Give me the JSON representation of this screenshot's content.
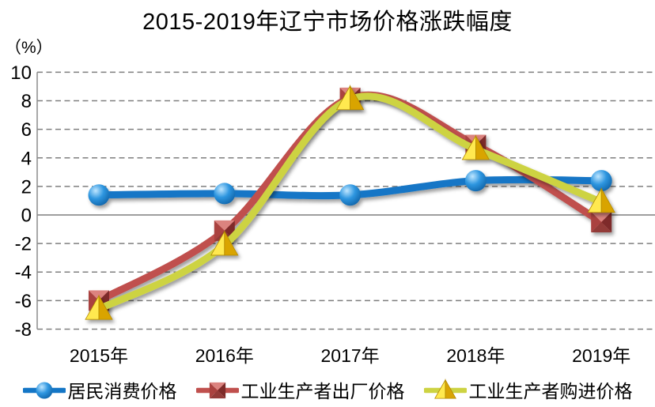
{
  "title": "2015-2019年辽宁市场价格涨跌幅度",
  "y_axis": {
    "unit_label": "（%）",
    "tick_labels": [
      "10",
      "8",
      "6",
      "4",
      "2",
      "0",
      "-2",
      "-4",
      "-6",
      "-8"
    ]
  },
  "chart_data": {
    "type": "line",
    "title": "2015-2019年辽宁市场价格涨跌幅度",
    "ylabel": "（%）",
    "categories": [
      "2015年",
      "2016年",
      "2017年",
      "2018年",
      "2019年"
    ],
    "series": [
      {
        "name": "居民消费价格",
        "marker": "circle",
        "color": "#1476C6",
        "values": [
          1.4,
          1.5,
          1.4,
          2.4,
          2.4
        ],
        "sphere_colors": [
          "#BFE6FF",
          "#2E96E0",
          "#0A5A9E"
        ]
      },
      {
        "name": "工业生产者出厂价格",
        "marker": "square",
        "color": "#C0504D",
        "values": [
          -6.0,
          -1.1,
          8.2,
          4.9,
          -0.5
        ],
        "facet_colors": {
          "top": "#DC837F",
          "left": "#AA423F",
          "right": "#7E2B29",
          "bottom": "#933B38"
        }
      },
      {
        "name": "工业生产者购进价格",
        "marker": "triangle",
        "color": "#CDD342",
        "values": [
          -6.6,
          -2.1,
          8.1,
          4.6,
          0.9
        ],
        "facet_colors": {
          "left": "#FFE94F",
          "right": "#D9A404",
          "edge": "#B38A00"
        }
      }
    ],
    "ylim": [
      -8,
      10
    ],
    "ytick_step": 2,
    "grid": "horizontal-dashed",
    "gridline_color": "#7F7F7F",
    "axis_line_color": "#8C8C8C",
    "legend_position": "bottom"
  }
}
